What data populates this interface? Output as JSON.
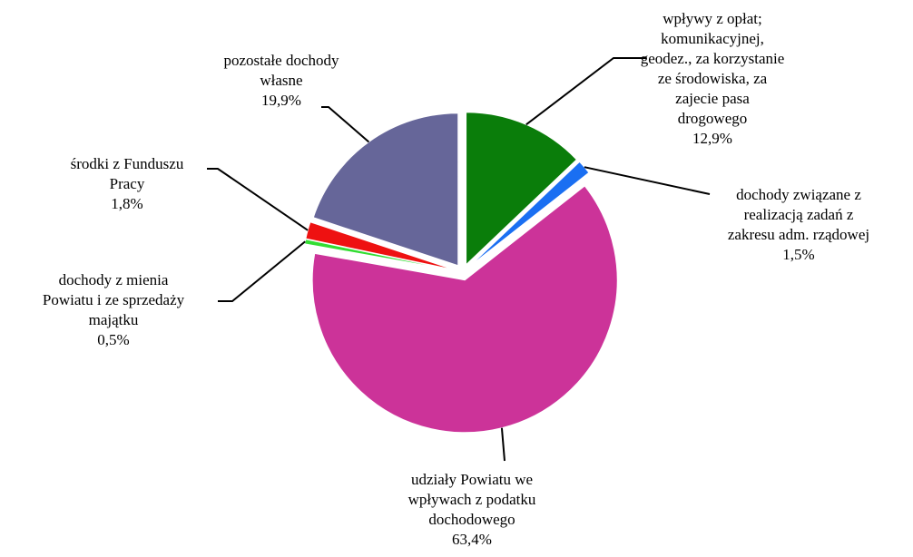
{
  "chart_data": {
    "type": "pie",
    "exploded": true,
    "start_angle_deg": 0,
    "direction": "clockwise",
    "slices": [
      {
        "label_lines": [
          "wpływy z opłat;",
          "komunikacyjnej,",
          "geodez., za korzystanie",
          "ze środowiska, za",
          "zajecie pasa",
          "drogowego"
        ],
        "value": 12.9,
        "value_label": "12,9%",
        "color": "#0a7d0a"
      },
      {
        "label_lines": [
          "dochody związane z",
          "realizacją zadań z",
          "zakresu adm. rządowej"
        ],
        "value": 1.5,
        "value_label": "1,5%",
        "color": "#1a6ff2"
      },
      {
        "label_lines": [
          "udziały Powiatu we",
          "wpływach z podatku",
          "dochodowego"
        ],
        "value": 63.4,
        "value_label": "63,4%",
        "color": "#cc3399"
      },
      {
        "label_lines": [
          "dochody z mienia",
          "Powiatu i ze sprzedaży",
          "majątku"
        ],
        "value": 0.5,
        "value_label": "0,5%",
        "color": "#33dd33"
      },
      {
        "label_lines": [
          "środki z Funduszu",
          "Pracy"
        ],
        "value": 1.8,
        "value_label": "1,8%",
        "color": "#ee1111"
      },
      {
        "label_lines": [
          "pozostałe dochody",
          "własne"
        ],
        "value": 19.9,
        "value_label": "19,9%",
        "color": "#666699"
      }
    ]
  }
}
